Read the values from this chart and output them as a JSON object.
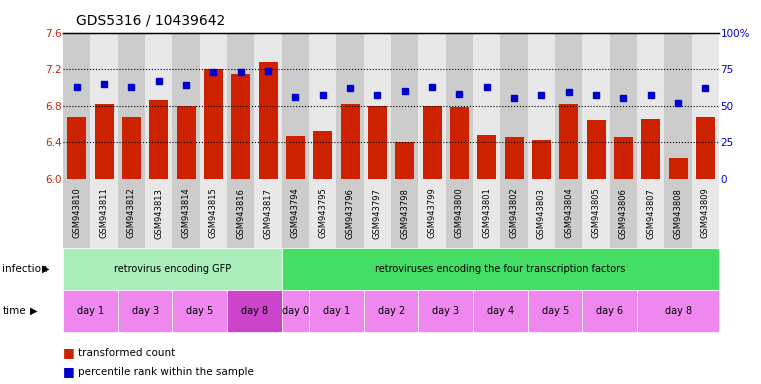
{
  "title": "GDS5316 / 10439642",
  "samples": [
    "GSM943810",
    "GSM943811",
    "GSM943812",
    "GSM943813",
    "GSM943814",
    "GSM943815",
    "GSM943816",
    "GSM943817",
    "GSM943794",
    "GSM943795",
    "GSM943796",
    "GSM943797",
    "GSM943798",
    "GSM943799",
    "GSM943800",
    "GSM943801",
    "GSM943802",
    "GSM943803",
    "GSM943804",
    "GSM943805",
    "GSM943806",
    "GSM943807",
    "GSM943808",
    "GSM943809"
  ],
  "bar_values": [
    6.67,
    6.82,
    6.67,
    6.86,
    6.8,
    7.2,
    7.15,
    7.28,
    6.47,
    6.52,
    6.82,
    6.8,
    6.4,
    6.8,
    6.78,
    6.48,
    6.46,
    6.42,
    6.82,
    6.64,
    6.46,
    6.65,
    6.22,
    6.67
  ],
  "percentile_values": [
    63,
    65,
    63,
    67,
    64,
    73,
    73,
    74,
    56,
    57,
    62,
    57,
    60,
    63,
    58,
    63,
    55,
    57,
    59,
    57,
    55,
    57,
    52,
    62
  ],
  "ylim_left": [
    6.0,
    7.6
  ],
  "ylim_right": [
    0,
    100
  ],
  "yticks_left": [
    6.0,
    6.4,
    6.8,
    7.2,
    7.6
  ],
  "yticks_right": [
    0,
    25,
    50,
    75,
    100
  ],
  "ytick_labels_right": [
    "0",
    "25",
    "50",
    "75",
    "100%"
  ],
  "bar_color": "#cc2200",
  "dot_color": "#0000cc",
  "infection_groups": [
    {
      "label": "retrovirus encoding GFP",
      "start": 0,
      "end": 7,
      "color": "#aaeebb"
    },
    {
      "label": "retroviruses encoding the four transcription factors",
      "start": 8,
      "end": 23,
      "color": "#44dd66"
    }
  ],
  "time_groups": [
    {
      "label": "day 1",
      "start": 0,
      "end": 1,
      "color": "#ee88ee"
    },
    {
      "label": "day 3",
      "start": 2,
      "end": 3,
      "color": "#ee88ee"
    },
    {
      "label": "day 5",
      "start": 4,
      "end": 5,
      "color": "#ee88ee"
    },
    {
      "label": "day 8",
      "start": 6,
      "end": 7,
      "color": "#cc44cc"
    },
    {
      "label": "day 0",
      "start": 8,
      "end": 8,
      "color": "#ee88ee"
    },
    {
      "label": "day 1",
      "start": 9,
      "end": 10,
      "color": "#ee88ee"
    },
    {
      "label": "day 2",
      "start": 11,
      "end": 12,
      "color": "#ee88ee"
    },
    {
      "label": "day 3",
      "start": 13,
      "end": 14,
      "color": "#ee88ee"
    },
    {
      "label": "day 4",
      "start": 15,
      "end": 16,
      "color": "#ee88ee"
    },
    {
      "label": "day 5",
      "start": 17,
      "end": 18,
      "color": "#ee88ee"
    },
    {
      "label": "day 6",
      "start": 19,
      "end": 20,
      "color": "#ee88ee"
    },
    {
      "label": "day 8",
      "start": 21,
      "end": 23,
      "color": "#ee88ee"
    }
  ],
  "col_bg_even": "#cccccc",
  "col_bg_odd": "#e8e8e8",
  "bg_color": "#ffffff",
  "tick_label_color_left": "#cc2200",
  "tick_label_color_right": "#0000cc",
  "legend_bar_label": "transformed count",
  "legend_dot_label": "percentile rank within the sample"
}
